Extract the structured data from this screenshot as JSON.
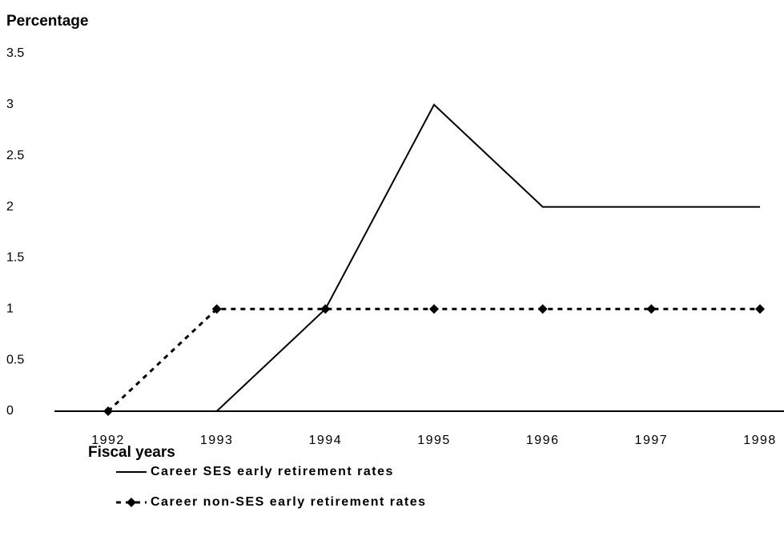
{
  "chart_data": {
    "type": "line",
    "title": "Percentage",
    "x_label": "Fiscal years",
    "categories": [
      "1992",
      "1993",
      "1994",
      "1995",
      "1996",
      "1997",
      "1998"
    ],
    "series": [
      {
        "name": "Career SES early retirement rates",
        "color": "#000000",
        "line_style": "solid",
        "marker": "none",
        "values": [
          0,
          0,
          1,
          3,
          2,
          2,
          2
        ]
      },
      {
        "name": "Career non-SES early retirement rates",
        "color": "#000000",
        "line_style": "dashed",
        "marker": "diamond",
        "values": [
          0,
          1,
          1,
          1,
          1,
          1,
          1
        ]
      }
    ],
    "ylim": [
      0,
      3.5
    ],
    "yticks": [
      0,
      0.5,
      1,
      1.5,
      2,
      2.5,
      3,
      3.5
    ],
    "grid": false,
    "legend": "bottom"
  }
}
